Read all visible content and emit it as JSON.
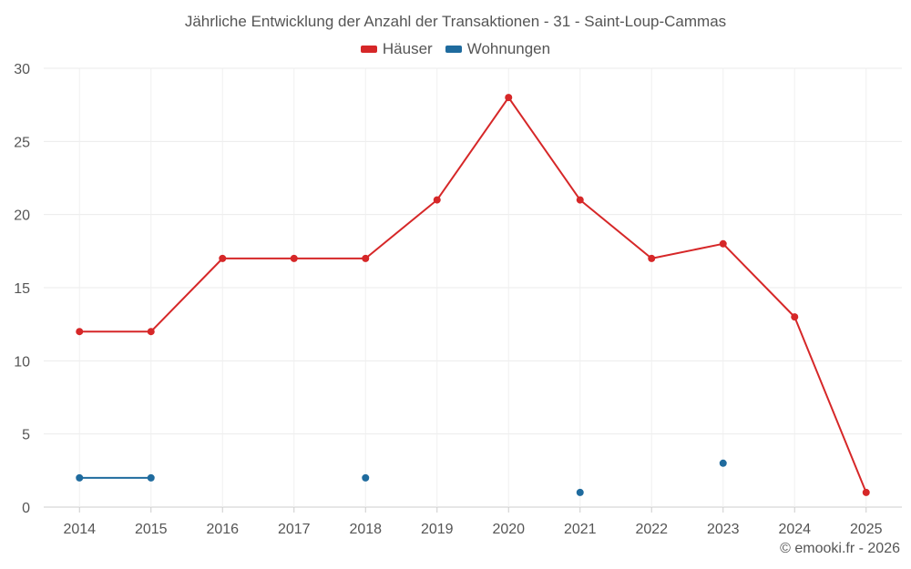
{
  "chart_data": {
    "type": "line",
    "title": "Jährliche Entwicklung der Anzahl der Transaktionen - 31 - Saint-Loup-Cammas",
    "xlabel": "",
    "ylabel": "",
    "categories": [
      "2014",
      "2015",
      "2016",
      "2017",
      "2018",
      "2019",
      "2020",
      "2021",
      "2022",
      "2023",
      "2024",
      "2025"
    ],
    "ylim": [
      0,
      30
    ],
    "yticks": [
      0,
      5,
      10,
      15,
      20,
      25,
      30
    ],
    "grid": true,
    "legend_position": "top-center",
    "series": [
      {
        "name": "Häuser",
        "color": "#d62728",
        "values": [
          12,
          12,
          17,
          17,
          17,
          21,
          28,
          21,
          17,
          18,
          13,
          1
        ]
      },
      {
        "name": "Wohnungen",
        "color": "#1f6b9e",
        "values": [
          2,
          2,
          null,
          null,
          2,
          null,
          null,
          1,
          null,
          3,
          null,
          null
        ]
      }
    ]
  },
  "credit": "© emooki.fr - 2026"
}
